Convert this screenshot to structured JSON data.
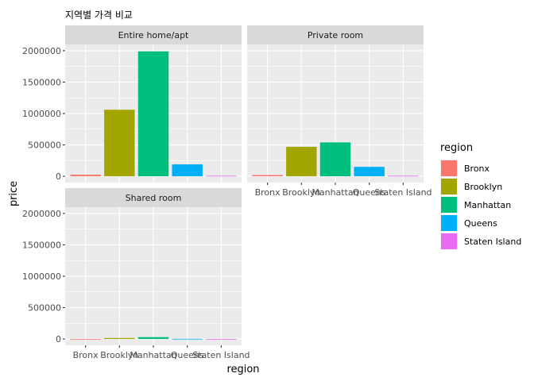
{
  "chart_data": {
    "type": "bar",
    "title": "지역별 가격 비교",
    "xlabel": "region",
    "ylabel": "price",
    "categories": [
      "Bronx",
      "Brooklyn",
      "Manhattan",
      "Queens",
      "Staten Island"
    ],
    "colors": {
      "Bronx": "#F8766D",
      "Brooklyn": "#A3A500",
      "Manhattan": "#00BF7D",
      "Queens": "#00B0F6",
      "Staten Island": "#E76BF3"
    },
    "ylim": [
      0,
      2000000
    ],
    "yticks": [
      0,
      500000,
      1000000,
      1500000,
      2000000
    ],
    "ytick_labels": [
      "0",
      "500000",
      "1000000",
      "1500000",
      "2000000"
    ],
    "facets": [
      {
        "name": "Entire home/apt",
        "values": [
          25000,
          1060000,
          1990000,
          190000,
          8000
        ]
      },
      {
        "name": "Private room",
        "values": [
          20000,
          470000,
          540000,
          150000,
          8000
        ]
      },
      {
        "name": "Shared room",
        "values": [
          1500,
          16000,
          30000,
          3000,
          500
        ]
      }
    ],
    "legend": {
      "title": "region",
      "position": "right",
      "entries": [
        "Bronx",
        "Brooklyn",
        "Manhattan",
        "Queens",
        "Staten Island"
      ]
    },
    "grid": true
  }
}
